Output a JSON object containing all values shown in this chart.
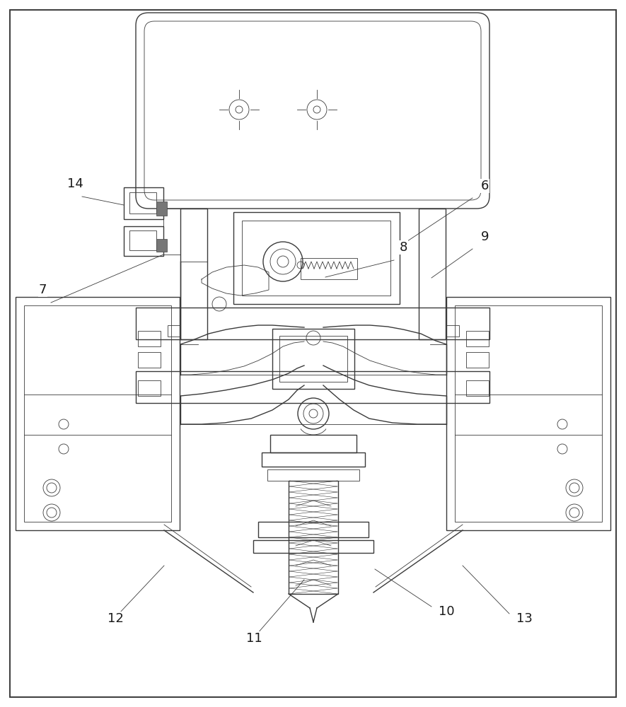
{
  "bg_color": "#ffffff",
  "line_color": "#3a3a3a",
  "label_color": "#1a1a1a",
  "lw_heavy": 1.4,
  "lw_main": 1.0,
  "lw_thin": 0.6,
  "lw_light": 0.4,
  "gray_fill": "#888888",
  "hatch_fill": "#c8c8c8"
}
